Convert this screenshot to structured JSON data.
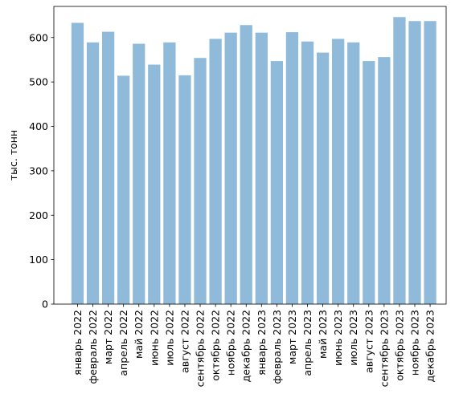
{
  "chart_data": {
    "type": "bar",
    "title": "",
    "xlabel": "",
    "ylabel": "тыс. тонн",
    "ylim": [
      0,
      670
    ],
    "yticks": [
      0,
      100,
      200,
      300,
      400,
      500,
      600
    ],
    "grid": false,
    "legend": "none",
    "bar_color": "#8fbad9",
    "categories": [
      "январь 2022",
      "февраль 2022",
      "март 2022",
      "апрель 2022",
      "май 2022",
      "июнь 2022",
      "июль 2022",
      "август 2022",
      "сентябрь 2022",
      "октябрь 2022",
      "ноябрь 2022",
      "декабрь 2022",
      "январь 2023",
      "февраль 2023",
      "март 2023",
      "апрель 2023",
      "май 2023",
      "июнь 2023",
      "июль 2023",
      "август 2023",
      "сентябрь 2023",
      "октябрь 2023",
      "ноябрь 2023",
      "декабрь 2023"
    ],
    "values": [
      633,
      589,
      613,
      514,
      586,
      539,
      589,
      515,
      554,
      597,
      611,
      628,
      611,
      547,
      612,
      591,
      566,
      597,
      589,
      547,
      556,
      646,
      637,
      637
    ]
  }
}
